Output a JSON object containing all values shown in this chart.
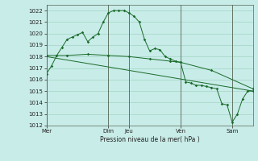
{
  "background_color": "#c8ece8",
  "grid_color": "#99ccbb",
  "line_color": "#1a6b2a",
  "text_color": "#222222",
  "xlabel": "Pression niveau de la mer( hPa )",
  "ylim": [
    1012,
    1022.5
  ],
  "yticks": [
    1012,
    1013,
    1014,
    1015,
    1016,
    1017,
    1018,
    1019,
    1020,
    1021,
    1022
  ],
  "xlim": [
    0,
    240
  ],
  "xtick_labels": [
    "Mer",
    "Dim",
    "Jeu",
    "Ven",
    "Sam"
  ],
  "xtick_positions": [
    0,
    72,
    96,
    156,
    216
  ],
  "vlines": [
    0,
    72,
    96,
    156,
    216
  ],
  "series1": {
    "x": [
      0,
      6,
      12,
      18,
      24,
      30,
      36,
      42,
      48,
      54,
      60,
      66,
      72,
      78,
      84,
      90,
      96,
      102,
      108,
      114,
      120,
      126,
      132,
      138,
      144,
      150,
      156,
      162,
      168,
      174,
      180,
      186,
      192,
      198,
      204,
      210,
      216,
      222,
      228,
      234,
      240
    ],
    "y": [
      1016.5,
      1017.2,
      1018.1,
      1018.8,
      1019.5,
      1019.7,
      1019.9,
      1020.1,
      1019.3,
      1019.7,
      1020.0,
      1021.0,
      1021.8,
      1022.0,
      1022.0,
      1022.0,
      1021.8,
      1021.5,
      1021.0,
      1019.5,
      1018.5,
      1018.7,
      1018.6,
      1018.0,
      1017.8,
      1017.6,
      1017.5,
      1015.8,
      1015.7,
      1015.5,
      1015.5,
      1015.4,
      1015.3,
      1015.2,
      1013.9,
      1013.8,
      1012.3,
      1013.0,
      1014.3,
      1015.0,
      1015.0
    ]
  },
  "series2": {
    "x": [
      0,
      24,
      48,
      72,
      96,
      120,
      144,
      156,
      192,
      240
    ],
    "y": [
      1018.1,
      1018.1,
      1018.2,
      1018.1,
      1018.0,
      1017.8,
      1017.6,
      1017.5,
      1016.8,
      1015.2
    ]
  },
  "series3": {
    "x": [
      0,
      240
    ],
    "y": [
      1018.0,
      1015.0
    ]
  },
  "figsize": [
    3.2,
    2.0
  ],
  "dpi": 100
}
